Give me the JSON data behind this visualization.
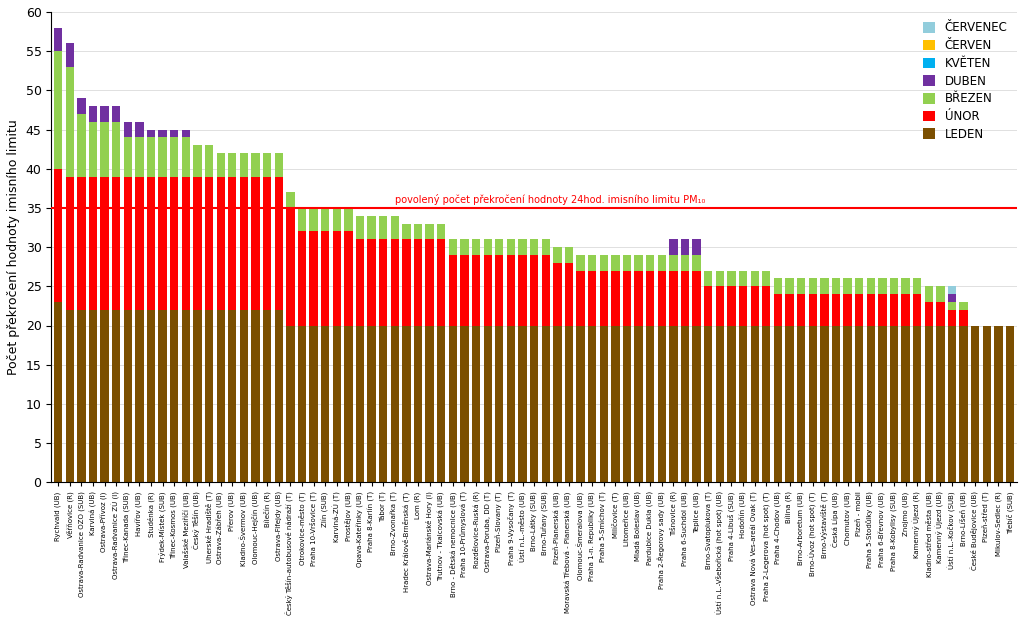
{
  "categories": [
    "Rychvald (UB)",
    "Věřňovice (R)",
    "Ostrava-Radvanice OZO (SUB)",
    "Karviná (UB)",
    "Ostrava-Přívoz (I)",
    "Ostrava-Radvanice ZÚ (I)",
    "Třinec-Kanada (SUB)",
    "Havířov (UB)",
    "Studénka (R)",
    "Frýdek-Místek (SUB)",
    "Třinec-Kosmos (UB)",
    "Valašské Meziříčí (UB)",
    "Český Těšín (UB)",
    "Uherské Hradiště (T)",
    "Ostrava-Zábřeh (UB)",
    "Přerov (UB)",
    "Kladno-Švermov (UB)",
    "Olomouc-Hejčín (UB)",
    "Bílečín (R)",
    "Ostrava-Fifejdy (UB)",
    "Český Těšín-autobusové nádraží (T)",
    "Otrokovice-město (T)",
    "Praha 10-Vršovice (T)",
    "Zlín (SUB)",
    "Karviná-ZÚ (T)",
    "Prostějov (UB)",
    "Opava-Kateřinky (UB)",
    "Praha 8-Karlín (T)",
    "Tábor (T)",
    "Brno-Zvonařka (T)",
    "Hradec Králové-Brněnská (T)",
    "Lom (R)",
    "Ostrava-Mariánské Hory (I)",
    "Trutnov - Tkalcovská (UB)",
    "Brno - Dětská nemocnice (UB)",
    "Praha 10-Průmyslová (T)",
    "Rozdělovice-Ruská (R)",
    "Ostrava-Poruba, DD (T)",
    "Plzeň-Slovany (T)",
    "Praha 9-Vysočany (T)",
    "Ústí n.L.-město (UB)",
    "Brno-Látky (SUB)",
    "Brno-Tuřany (SUB)",
    "Plzeň-Planerská (UB)",
    "Moravská Třebová - Planerská (UB)",
    "Olomouc-Šmeralova (UB)",
    "Praha 1-n. Republiky (UB)",
    "Praha 5-Smíchov (T)",
    "Milíčovice (T)",
    "Litomeřice (UB)",
    "Mladá Boleslav (UB)",
    "Pardubice Dukla (UB)",
    "Praha 2-Řegorovy sady (UB)",
    "Tišnovice (R)",
    "Praha 6-Suchdol (UB)",
    "Teplice (UB)",
    "Brno-Svatoplukova (T)",
    "Ústí n.L.-Všebořická (hot spot) (UB)",
    "Praha 4-Libuš (SUB)",
    "Hodoňín (UB)",
    "Ostrava Nová Ves-areál Ovak (T)",
    "Praha 2-Legerova (hot spot) (T)",
    "Praha 4-Chodov (UB)",
    "Bílina (R)",
    "Brno-Arboretum (UB)",
    "Brno-Úvoz (hot spot) (T)",
    "Brno-Výstavíště (T)",
    "Česká Lípa (UB)",
    "Chomutov (UB)",
    "Plzeň - mobil",
    "Praha 5-Stodůlky (UB)",
    "Praha 6-Břevnov (UB)",
    "Praha 8-Kobylisy (SUB)",
    "Znojmo (UB)",
    "Kamenný Újezd (R)",
    "Kladno-střed města (UB)",
    "Kamenný Újezd (UB)",
    "Ústí n.L.-Kočkov (SUB)",
    "Brno-Líšeň (UB)",
    "České Budějovice (UB)",
    "Plzeň-střed (T)",
    "Mikulov-Sedlec (R)",
    "Třebíč (SUB)"
  ],
  "leden": [
    23,
    22,
    22,
    22,
    22,
    22,
    22,
    22,
    22,
    22,
    22,
    22,
    22,
    22,
    22,
    22,
    22,
    22,
    22,
    22,
    20,
    20,
    20,
    20,
    20,
    20,
    20,
    20,
    20,
    20,
    20,
    20,
    20,
    20,
    20,
    20,
    20,
    20,
    20,
    20,
    20,
    20,
    20,
    20,
    20,
    20,
    20,
    20,
    20,
    20,
    20,
    20,
    20,
    20,
    20,
    20,
    20,
    20,
    20,
    20,
    20,
    20,
    20,
    20,
    20,
    20,
    20,
    20,
    20,
    20,
    20,
    20,
    20,
    20,
    20,
    20,
    20,
    20,
    20,
    20,
    20,
    20,
    20
  ],
  "unor": [
    17,
    17,
    17,
    17,
    17,
    17,
    17,
    17,
    17,
    17,
    17,
    17,
    17,
    17,
    17,
    17,
    17,
    17,
    17,
    17,
    15,
    12,
    12,
    12,
    12,
    12,
    11,
    11,
    11,
    11,
    11,
    11,
    11,
    11,
    9,
    9,
    9,
    9,
    9,
    9,
    9,
    9,
    9,
    8,
    8,
    7,
    7,
    7,
    7,
    7,
    7,
    7,
    7,
    7,
    7,
    7,
    5,
    5,
    5,
    5,
    5,
    5,
    4,
    4,
    4,
    4,
    4,
    4,
    4,
    4,
    4,
    4,
    4,
    4,
    4,
    3,
    3,
    2,
    2,
    0,
    0,
    0,
    0
  ],
  "brezen": [
    15,
    14,
    8,
    7,
    7,
    7,
    5,
    5,
    5,
    5,
    5,
    5,
    4,
    4,
    3,
    3,
    3,
    3,
    3,
    3,
    2,
    3,
    3,
    3,
    3,
    3,
    3,
    3,
    3,
    3,
    2,
    2,
    2,
    2,
    2,
    2,
    2,
    2,
    2,
    2,
    2,
    2,
    2,
    2,
    2,
    2,
    2,
    2,
    2,
    2,
    2,
    2,
    2,
    2,
    2,
    2,
    2,
    2,
    2,
    2,
    2,
    2,
    2,
    2,
    2,
    2,
    2,
    2,
    2,
    2,
    2,
    2,
    2,
    2,
    2,
    2,
    2,
    1,
    1,
    0,
    0,
    0,
    0
  ],
  "duben": [
    3,
    3,
    2,
    2,
    2,
    2,
    2,
    2,
    1,
    1,
    1,
    1,
    0,
    0,
    0,
    0,
    0,
    0,
    0,
    0,
    0,
    0,
    0,
    0,
    0,
    0,
    0,
    0,
    0,
    0,
    0,
    0,
    0,
    0,
    0,
    0,
    0,
    0,
    0,
    0,
    0,
    0,
    0,
    0,
    0,
    0,
    0,
    0,
    0,
    0,
    0,
    0,
    0,
    2,
    2,
    2,
    0,
    0,
    0,
    0,
    0,
    0,
    0,
    0,
    0,
    0,
    0,
    0,
    0,
    0,
    0,
    0,
    0,
    0,
    0,
    0,
    0,
    1,
    0,
    0,
    0,
    0,
    0
  ],
  "kveten": [
    0,
    0,
    0,
    0,
    0,
    0,
    0,
    0,
    0,
    0,
    0,
    0,
    0,
    0,
    0,
    0,
    0,
    0,
    0,
    0,
    0,
    0,
    0,
    0,
    0,
    0,
    0,
    0,
    0,
    0,
    0,
    0,
    0,
    0,
    0,
    0,
    0,
    0,
    0,
    0,
    0,
    0,
    0,
    0,
    0,
    0,
    0,
    0,
    0,
    0,
    0,
    0,
    0,
    0,
    0,
    0,
    0,
    0,
    0,
    0,
    0,
    0,
    0,
    0,
    0,
    0,
    0,
    0,
    0,
    0,
    0,
    0,
    0,
    0,
    0,
    0,
    0,
    0,
    0,
    0,
    0,
    0,
    0
  ],
  "cerven": [
    0,
    0,
    0,
    0,
    0,
    0,
    0,
    0,
    0,
    0,
    0,
    0,
    0,
    0,
    0,
    0,
    0,
    0,
    0,
    0,
    0,
    0,
    0,
    0,
    0,
    0,
    0,
    0,
    0,
    0,
    0,
    0,
    0,
    0,
    0,
    0,
    0,
    0,
    0,
    0,
    0,
    0,
    0,
    0,
    0,
    0,
    0,
    0,
    0,
    0,
    0,
    0,
    0,
    0,
    0,
    0,
    0,
    0,
    0,
    0,
    0,
    0,
    0,
    0,
    0,
    0,
    0,
    0,
    0,
    0,
    0,
    0,
    0,
    0,
    0,
    0,
    0,
    0,
    0,
    0,
    0,
    0,
    0
  ],
  "cervenec": [
    0,
    0,
    0,
    0,
    0,
    0,
    0,
    0,
    0,
    0,
    0,
    0,
    0,
    0,
    0,
    0,
    0,
    0,
    0,
    0,
    0,
    0,
    0,
    0,
    0,
    0,
    0,
    0,
    0,
    0,
    0,
    0,
    0,
    0,
    0,
    0,
    0,
    0,
    0,
    0,
    0,
    0,
    0,
    0,
    0,
    0,
    0,
    0,
    0,
    0,
    0,
    0,
    0,
    0,
    0,
    0,
    0,
    0,
    0,
    0,
    0,
    0,
    0,
    0,
    0,
    0,
    0,
    0,
    0,
    0,
    0,
    0,
    0,
    0,
    0,
    0,
    0,
    1,
    0,
    0,
    0,
    0,
    0
  ],
  "colors": {
    "leden": "#7B4F00",
    "unor": "#FF0000",
    "brezen": "#92D050",
    "duben": "#7030A0",
    "kveten": "#00B0F0",
    "cerven": "#FFC000",
    "cervenec": "#92CDDC"
  },
  "ylabel": "Počet překročení hodnoty imisního limitu",
  "limit_value": 35,
  "limit_label": "povolený počet překročení hodnoty 24hod. imisního limitu PM₁₀",
  "ylim": [
    0,
    60
  ],
  "yticks": [
    0,
    5,
    10,
    15,
    20,
    25,
    30,
    35,
    40,
    45,
    50,
    55,
    60
  ],
  "legend_labels": [
    "ČERVENEC",
    "ČERVEN",
    "KVĚTEN",
    "DUBEN",
    "BŘEZEN",
    "ÚNOR",
    "LEDEN"
  ],
  "legend_colors": [
    "#92CDDC",
    "#FFC000",
    "#00B0F0",
    "#7030A0",
    "#92D050",
    "#FF0000",
    "#7B4F00"
  ]
}
